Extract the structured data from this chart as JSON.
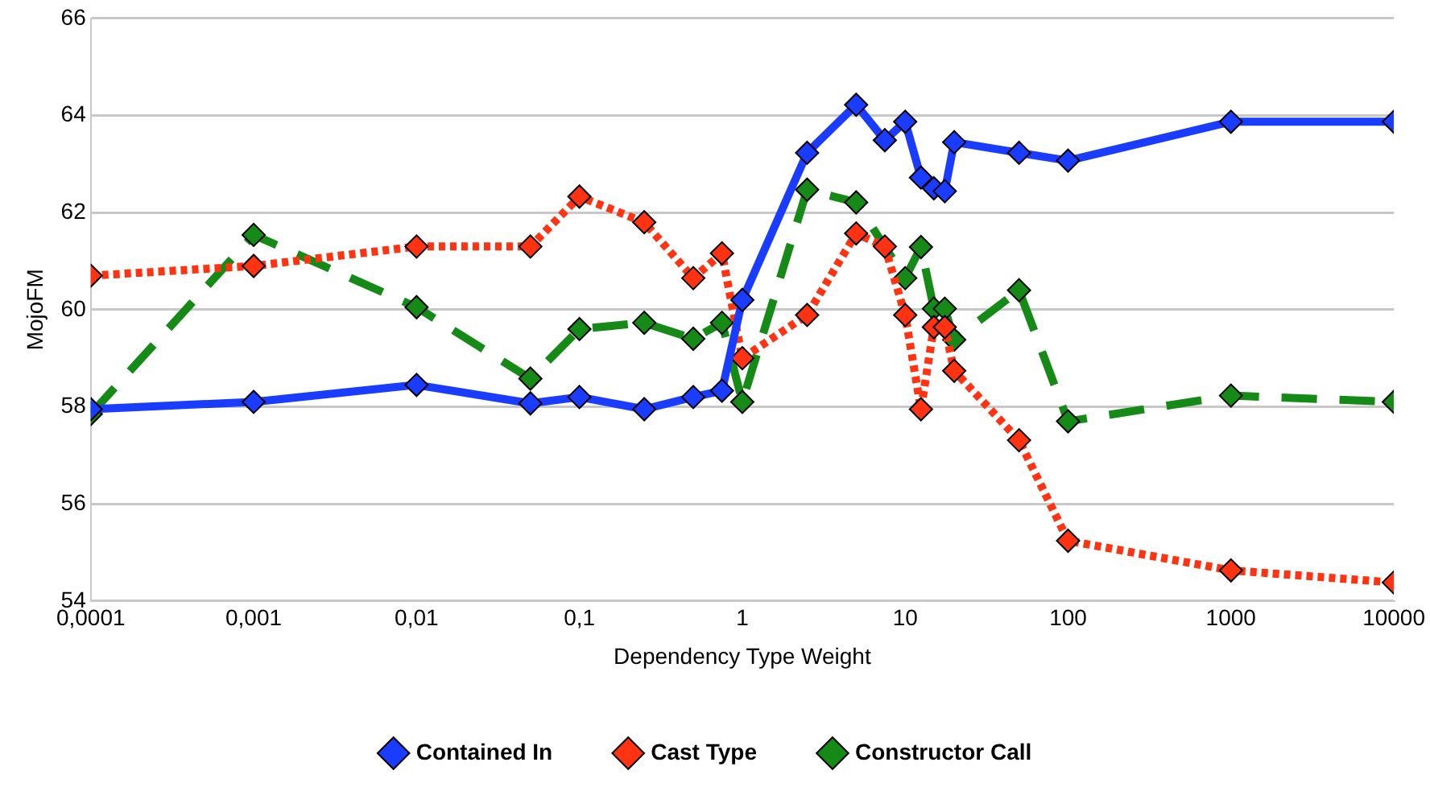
{
  "chart_data": {
    "type": "line",
    "xlabel": "Dependency Type Weight",
    "ylabel": "MojoFM",
    "log": "x",
    "grid": "y",
    "legend": "bottom",
    "marker": "diamond",
    "xlim": [
      0.0001,
      10000
    ],
    "xticks": [
      {
        "value": 0.0001,
        "label": "0,0001"
      },
      {
        "value": 0.001,
        "label": "0,001"
      },
      {
        "value": 0.01,
        "label": "0,01"
      },
      {
        "value": 0.1,
        "label": "0,1"
      },
      1,
      10,
      100,
      1000,
      10000
    ],
    "ylim": [
      54,
      66
    ],
    "yticks": [
      54,
      56,
      58,
      60,
      62,
      64,
      66
    ],
    "x": [
      0.0001,
      0.001,
      0.01,
      0.05,
      0.1,
      0.25,
      0.5,
      0.75,
      1,
      2.5,
      5,
      7.5,
      10,
      12.5,
      15,
      17.5,
      20,
      50,
      100,
      1000,
      10000
    ],
    "series": [
      {
        "name": "Contained In",
        "color": "#1a3cff",
        "line_style": "solid",
        "values": [
          57.95,
          58.1,
          58.45,
          58.07,
          58.2,
          57.95,
          58.2,
          58.33,
          60.2,
          63.23,
          64.22,
          63.49,
          63.87,
          62.72,
          62.5,
          62.44,
          63.45,
          63.23,
          63.07,
          63.87,
          63.87
        ]
      },
      {
        "name": "Cast Type",
        "color": "#ff3311",
        "line_style": "dotted",
        "values": [
          60.7,
          60.9,
          61.3,
          61.3,
          62.33,
          61.8,
          60.65,
          61.16,
          59.0,
          59.89,
          61.57,
          61.3,
          59.89,
          57.95,
          59.64,
          59.64,
          58.74,
          57.31,
          55.24,
          54.63,
          54.38
        ]
      },
      {
        "name": "Constructor Call",
        "color": "#168a16",
        "line_style": "dashed",
        "values": [
          57.85,
          61.54,
          60.05,
          58.58,
          59.6,
          59.73,
          59.4,
          59.73,
          58.1,
          62.47,
          62.21,
          null,
          60.65,
          61.29,
          60.02,
          60.02,
          59.38,
          60.4,
          57.7,
          58.23,
          58.1
        ]
      }
    ]
  }
}
